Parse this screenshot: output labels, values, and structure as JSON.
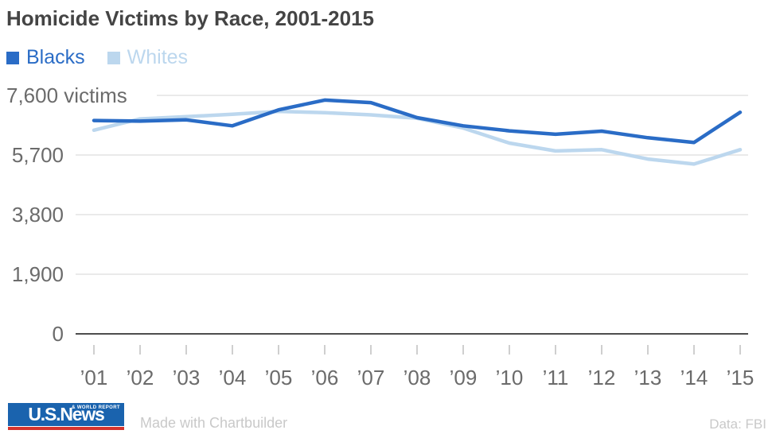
{
  "title": "Homicide Victims by Race, 2001-2015",
  "legend": {
    "items": [
      {
        "label": "Blacks",
        "color": "#2a6cc6"
      },
      {
        "label": "Whites",
        "color": "#bcd7ee"
      }
    ]
  },
  "chart_data": {
    "type": "line",
    "title": "Homicide Victims by Race, 2001-2015",
    "x": [
      "’01",
      "’02",
      "’03",
      "’04",
      "’05",
      "’06",
      "’07",
      "’08",
      "’09",
      "’10",
      "’11",
      "’12",
      "’13",
      "’14",
      "’15"
    ],
    "series": [
      {
        "name": "Blacks",
        "color": "#2a6cc6",
        "values": [
          6800,
          6780,
          6820,
          6630,
          7140,
          7450,
          7370,
          6890,
          6630,
          6470,
          6360,
          6460,
          6250,
          6100,
          7060
        ]
      },
      {
        "name": "Whites",
        "color": "#bcd7ee",
        "values": [
          6490,
          6850,
          6920,
          7000,
          7090,
          7050,
          6980,
          6870,
          6560,
          6080,
          5830,
          5870,
          5570,
          5410,
          5870
        ]
      }
    ],
    "yticks": [
      {
        "value": 7600,
        "label": "7,600 victims"
      },
      {
        "value": 5700,
        "label": "5,700"
      },
      {
        "value": 3800,
        "label": "3,800"
      },
      {
        "value": 1900,
        "label": "1,900"
      },
      {
        "value": 0,
        "label": "0"
      }
    ],
    "ylim": [
      0,
      7600
    ],
    "grid": true,
    "legend_position": "top-left"
  },
  "footer": {
    "logo_primary": "U.S.News",
    "logo_secondary": "& WORLD REPORT",
    "credit": "Made with Chartbuilder",
    "source": "Data: FBI"
  },
  "colors": {
    "title": "#444444",
    "axis_label": "#6b6b6b",
    "gridline": "#e3e3e3",
    "zero_axis": "#4d4d4d",
    "tick_mark": "#cfcfcf",
    "logo_blue": "#1a63ae",
    "logo_red": "#d5342e",
    "footer_text": "#c9c9c9"
  }
}
